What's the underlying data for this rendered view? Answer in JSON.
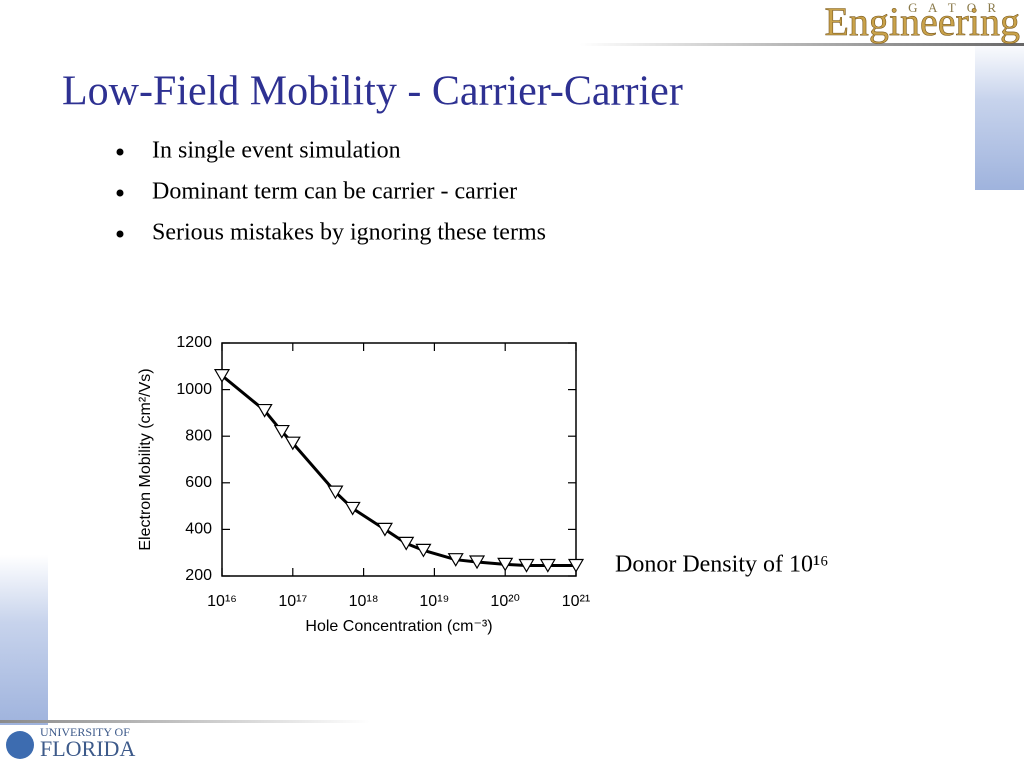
{
  "header": {
    "title": "Low-Field Mobility - Carrier-Carrier"
  },
  "logo_top": {
    "small": "G A T O R",
    "large": "Engineering"
  },
  "logo_bottom": {
    "line1": "UNIVERSITY OF",
    "line2": "FLORIDA"
  },
  "bullets": [
    "In single event simulation",
    "Dominant term can be carrier - carrier",
    "Serious mistakes by ignoring these terms"
  ],
  "annotation": "Donor Density of 10¹⁶",
  "chart_data": {
    "type": "line",
    "xlabel": "Hole Concentration (cm⁻³)",
    "ylabel": "Electron Mobility (cm²/Vs)",
    "xscale": "log",
    "x": [
      1e+16,
      4e+16,
      7e+16,
      1e+17,
      4e+17,
      7e+17,
      2e+18,
      4e+18,
      7e+18,
      2e+19,
      4e+19,
      1e+20,
      2e+20,
      4e+20,
      1e+21
    ],
    "series": [
      {
        "color": "#000000",
        "marker": "triangle-down",
        "values": [
          1060,
          910,
          820,
          770,
          560,
          490,
          400,
          340,
          310,
          270,
          260,
          250,
          245,
          245,
          245
        ]
      }
    ],
    "xlim": [
      1e+16,
      1e+21
    ],
    "xticks": [
      {
        "value": 1e+16,
        "label": "10¹⁶"
      },
      {
        "value": 1e+17,
        "label": "10¹⁷"
      },
      {
        "value": 1e+18,
        "label": "10¹⁸"
      },
      {
        "value": 1e+19,
        "label": "10¹⁹"
      },
      {
        "value": 1e+20,
        "label": "10²⁰"
      },
      {
        "value": 1e+21,
        "label": "10²¹"
      }
    ],
    "ylim": [
      200,
      1200
    ],
    "yticks": [
      200,
      400,
      600,
      800,
      1000,
      1200
    ]
  }
}
